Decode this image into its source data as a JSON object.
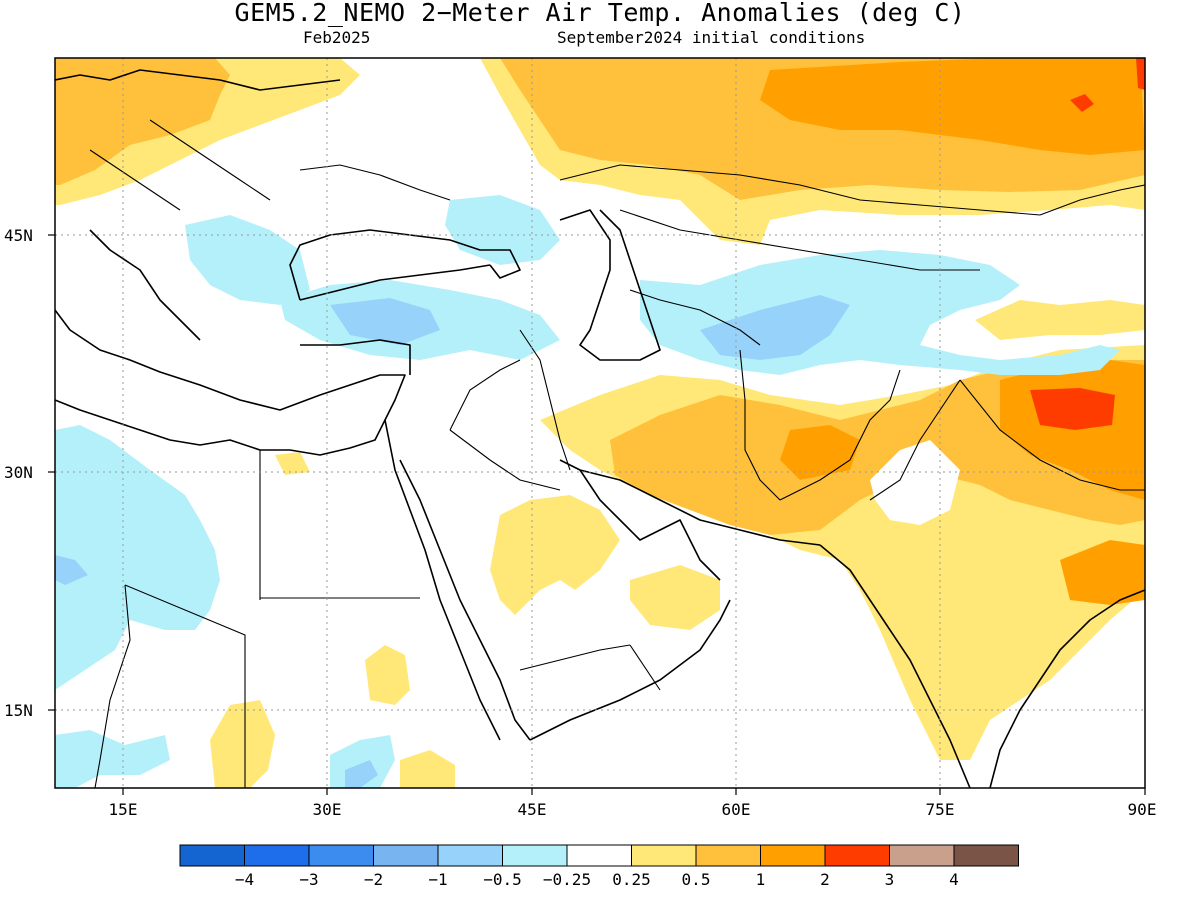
{
  "header": {
    "title": "GEM5.2_NEMO 2−Meter Air Temp. Anomalies (deg C)",
    "valid_month": "Feb2025",
    "init": "September2024 initial conditions"
  },
  "map": {
    "region": "Middle East and South Asia",
    "lon_range": [
      10,
      90
    ],
    "lat_range": [
      10,
      57
    ],
    "lon_ticks": [
      {
        "value": 15,
        "label": "15E"
      },
      {
        "value": 30,
        "label": "30E"
      },
      {
        "value": 45,
        "label": "45E"
      },
      {
        "value": 60,
        "label": "60E"
      },
      {
        "value": 75,
        "label": "75E"
      },
      {
        "value": 90,
        "label": "90E"
      }
    ],
    "lat_ticks": [
      {
        "value": 45,
        "label": "45N"
      },
      {
        "value": 30,
        "label": "30N"
      },
      {
        "value": 15,
        "label": "15N"
      }
    ],
    "gridlines": "dotted"
  },
  "colorbar": {
    "colors": [
      "#1464d2",
      "#1e6eeb",
      "#3c8cf0",
      "#78b4f0",
      "#96d2fa",
      "#b4f0fa",
      "#ffffff",
      "#ffe878",
      "#ffc03c",
      "#ffa000",
      "#ff3c00",
      "#c8a08c",
      "#7a5446"
    ],
    "labels": [
      "−4",
      "−3",
      "−2",
      "−1",
      "−0.5",
      "−0.25",
      "0.25",
      "0.5",
      "1",
      "2",
      "3",
      "4"
    ]
  },
  "palette": {
    "light_blue": "#b4f0fa",
    "mid_blue": "#96d2fa",
    "blue": "#78b4f0",
    "yellow": "#ffe878",
    "light_orange": "#ffc03c",
    "orange": "#ffa000",
    "red": "#ff3c00"
  }
}
